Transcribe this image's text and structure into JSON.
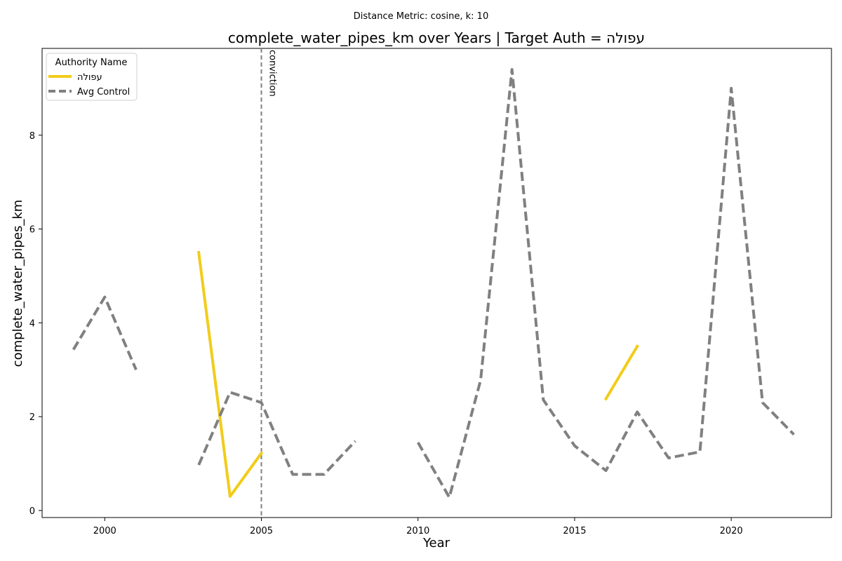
{
  "chart_data": {
    "type": "line",
    "suptitle": "Distance Metric: cosine, k: 10",
    "title": "complete_water_pipes_km over Years | Target Auth = עפולה",
    "xlabel": "Year",
    "ylabel": "complete_water_pipes_km",
    "xlim": [
      1998.0,
      2023.2
    ],
    "ylim": [
      -0.15,
      9.85
    ],
    "xticks": [
      2000,
      2005,
      2010,
      2015,
      2020
    ],
    "yticks": [
      0,
      2,
      4,
      6,
      8
    ],
    "grid": false,
    "legend": {
      "title": "Authority Name",
      "placement": "top-left"
    },
    "annotation": {
      "label": "conviction",
      "x": 2005
    },
    "series": [
      {
        "name": "עפולה",
        "color": "#f2cc1a",
        "style": "solid",
        "points": [
          [
            1999,
            null
          ],
          [
            2000,
            null
          ],
          [
            2001,
            null
          ],
          [
            2002,
            null
          ],
          [
            2003,
            5.5
          ],
          [
            2004,
            0.3
          ],
          [
            2005,
            1.22
          ],
          [
            2006,
            null
          ],
          [
            2007,
            null
          ],
          [
            2008,
            null
          ],
          [
            2009,
            null
          ],
          [
            2010,
            null
          ],
          [
            2011,
            null
          ],
          [
            2012,
            null
          ],
          [
            2013,
            null
          ],
          [
            2014,
            null
          ],
          [
            2015,
            null
          ],
          [
            2016,
            2.38
          ],
          [
            2017,
            3.5
          ],
          [
            2018,
            null
          ],
          [
            2019,
            null
          ],
          [
            2020,
            null
          ],
          [
            2021,
            null
          ],
          [
            2022,
            null
          ]
        ]
      },
      {
        "name": "Avg Control",
        "color": "#808080",
        "style": "dashed",
        "points": [
          [
            1999,
            3.43
          ],
          [
            2000,
            4.55
          ],
          [
            2001,
            3.0
          ],
          [
            2002,
            null
          ],
          [
            2003,
            0.97
          ],
          [
            2004,
            2.52
          ],
          [
            2005,
            2.3
          ],
          [
            2006,
            0.77
          ],
          [
            2007,
            0.77
          ],
          [
            2008,
            1.48
          ],
          [
            2009,
            null
          ],
          [
            2010,
            1.45
          ],
          [
            2011,
            0.28
          ],
          [
            2012,
            2.78
          ],
          [
            2013,
            9.4
          ],
          [
            2014,
            2.36
          ],
          [
            2015,
            1.38
          ],
          [
            2016,
            0.85
          ],
          [
            2017,
            2.1
          ],
          [
            2018,
            1.12
          ],
          [
            2019,
            1.25
          ],
          [
            2020,
            9.0
          ],
          [
            2021,
            2.3
          ],
          [
            2022,
            1.62
          ]
        ]
      }
    ]
  }
}
